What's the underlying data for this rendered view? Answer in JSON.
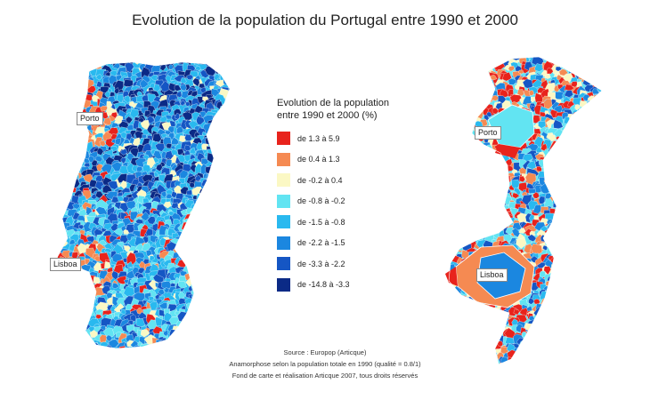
{
  "title": "Evolution de la population du Portugal entre 1990 et 2000",
  "legend": {
    "title_line1": "Evolution de la population",
    "title_line2": "entre 1990 et 2000 (%)",
    "classes": [
      {
        "label": "de 1.3 à 5.9",
        "color": "#e8231c"
      },
      {
        "label": "de 0.4 à 1.3",
        "color": "#f58a52"
      },
      {
        "label": "de -0.2 à 0.4",
        "color": "#fbf8c4"
      },
      {
        "label": "de -0.8 à -0.2",
        "color": "#62e4f2"
      },
      {
        "label": "de -1.5 à -0.8",
        "color": "#29b9ef"
      },
      {
        "label": "de -2.2 à -1.5",
        "color": "#1b87e0"
      },
      {
        "label": "de -3.3 à -2.2",
        "color": "#1556c4"
      },
      {
        "label": "de -14.8 à -3.3",
        "color": "#0b2a86"
      }
    ]
  },
  "maps": {
    "left": {
      "city_porto": "Porto",
      "city_lisboa": "Lisboa"
    },
    "right": {
      "city_porto": "Porto",
      "city_lisboa": "Lisboa"
    }
  },
  "source": {
    "line1": "Source : Europop (Articque)",
    "line2": "Anamorphose selon la population totale en 1990 (qualité = 0.8/1)",
    "line3": "Fond de carte et réalisation Articque 2007, tous droits réservés"
  }
}
